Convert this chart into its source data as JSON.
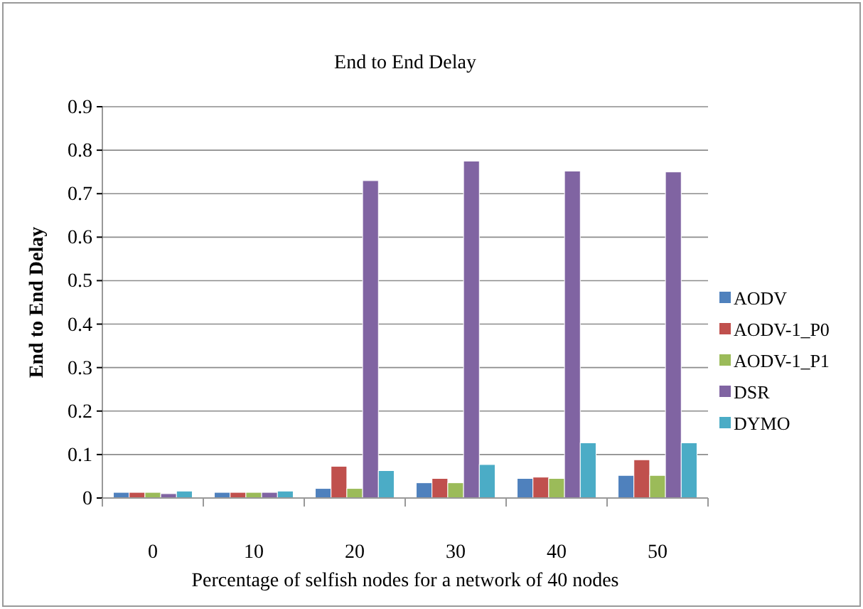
{
  "chart_data": {
    "type": "bar",
    "title": "End to End Delay",
    "xlabel": "Percentage of selfish nodes for a network of 40 nodes",
    "ylabel": "End to End Delay",
    "categories": [
      "0",
      "10",
      "20",
      "30",
      "40",
      "50"
    ],
    "series": [
      {
        "name": "AODV",
        "color": "#4f81bd",
        "values": [
          0.013,
          0.013,
          0.022,
          0.035,
          0.045,
          0.052
        ]
      },
      {
        "name": "AODV-1_P0",
        "color": "#c0504d",
        "values": [
          0.013,
          0.013,
          0.073,
          0.045,
          0.048,
          0.088
        ]
      },
      {
        "name": "AODV-1_P1",
        "color": "#9bbb59",
        "values": [
          0.013,
          0.013,
          0.022,
          0.035,
          0.045,
          0.052
        ]
      },
      {
        "name": "DSR",
        "color": "#8064a2",
        "values": [
          0.01,
          0.013,
          0.73,
          0.775,
          0.752,
          0.75
        ]
      },
      {
        "name": "DYMO",
        "color": "#4bacc6",
        "values": [
          0.016,
          0.016,
          0.063,
          0.077,
          0.127,
          0.127
        ]
      }
    ],
    "ylim": [
      0,
      0.9
    ],
    "yticks": [
      0,
      0.1,
      0.2,
      0.3,
      0.4,
      0.5,
      0.6,
      0.7,
      0.8,
      0.9
    ],
    "grid": "y",
    "legend": "right"
  }
}
